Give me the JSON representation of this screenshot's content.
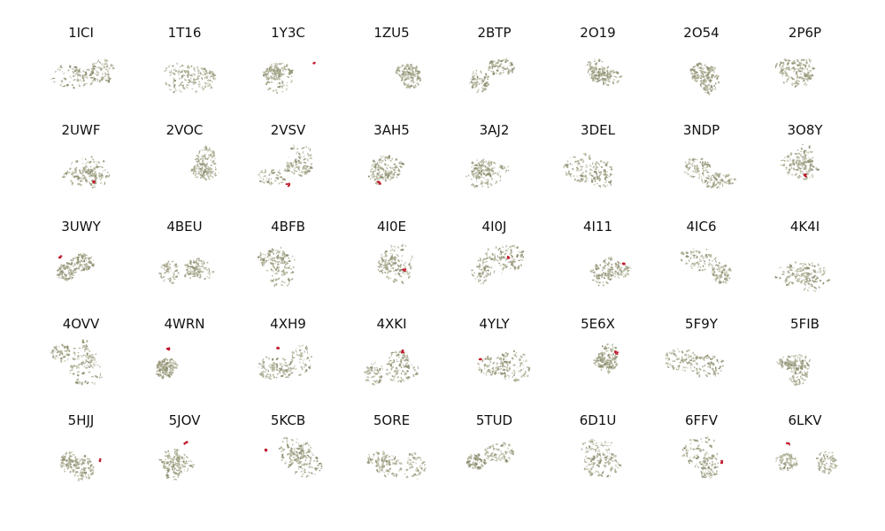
{
  "figure": {
    "columns": 8,
    "rows": 5,
    "structure_color": "#8f8f72",
    "highlight_color": "#c0192c",
    "panels": [
      {
        "id": "1ICI",
        "highlight": false
      },
      {
        "id": "1T16",
        "highlight": false
      },
      {
        "id": "1Y3C",
        "highlight": true
      },
      {
        "id": "1ZU5",
        "highlight": false
      },
      {
        "id": "2BTP",
        "highlight": false
      },
      {
        "id": "2O19",
        "highlight": false
      },
      {
        "id": "2O54",
        "highlight": false
      },
      {
        "id": "2P6P",
        "highlight": false
      },
      {
        "id": "2UWF",
        "highlight": true
      },
      {
        "id": "2VOC",
        "highlight": false
      },
      {
        "id": "2VSV",
        "highlight": true
      },
      {
        "id": "3AH5",
        "highlight": true
      },
      {
        "id": "3AJ2",
        "highlight": false
      },
      {
        "id": "3DEL",
        "highlight": false
      },
      {
        "id": "3NDP",
        "highlight": false
      },
      {
        "id": "3O8Y",
        "highlight": true
      },
      {
        "id": "3UWY",
        "highlight": true
      },
      {
        "id": "4BEU",
        "highlight": false
      },
      {
        "id": "4BFB",
        "highlight": false
      },
      {
        "id": "4I0E",
        "highlight": true
      },
      {
        "id": "4I0J",
        "highlight": true
      },
      {
        "id": "4I11",
        "highlight": true
      },
      {
        "id": "4IC6",
        "highlight": false
      },
      {
        "id": "4K4I",
        "highlight": false
      },
      {
        "id": "4OVV",
        "highlight": false
      },
      {
        "id": "4WRN",
        "highlight": true
      },
      {
        "id": "4XH9",
        "highlight": true
      },
      {
        "id": "4XKI",
        "highlight": true
      },
      {
        "id": "4YLY",
        "highlight": true
      },
      {
        "id": "5E6X",
        "highlight": true
      },
      {
        "id": "5F9Y",
        "highlight": false
      },
      {
        "id": "5FIB",
        "highlight": false
      },
      {
        "id": "5HJJ",
        "highlight": true
      },
      {
        "id": "5JOV",
        "highlight": true
      },
      {
        "id": "5KCB",
        "highlight": true
      },
      {
        "id": "5ORE",
        "highlight": false
      },
      {
        "id": "5TUD",
        "highlight": false
      },
      {
        "id": "6D1U",
        "highlight": false
      },
      {
        "id": "6FFV",
        "highlight": true
      },
      {
        "id": "6LKV",
        "highlight": true
      }
    ]
  }
}
